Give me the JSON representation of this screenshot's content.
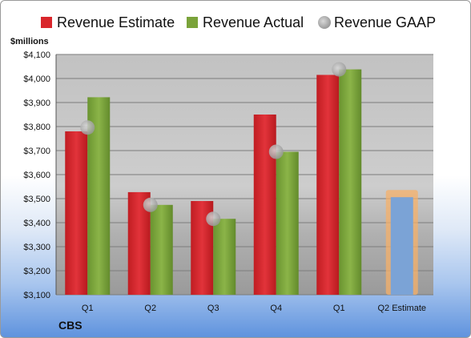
{
  "chart_data": {
    "type": "bar",
    "unit_label": "$millions",
    "company": "CBS",
    "categories": [
      "Q1",
      "Q2",
      "Q3",
      "Q4",
      "Q1",
      "Q2 Estimate"
    ],
    "series": [
      {
        "name": "Revenue Estimate",
        "color": "#d9262b",
        "values": [
          3780,
          3527,
          3490,
          3850,
          4015,
          null
        ]
      },
      {
        "name": "Revenue Actual",
        "color": "#7aa33a",
        "values": [
          3922,
          3474,
          3416,
          3695,
          4038,
          null
        ]
      },
      {
        "name": "Revenue GAAP",
        "color": "#b8b8b8",
        "values": [
          3796,
          3474,
          3416,
          3695,
          4038,
          null
        ]
      }
    ],
    "future_estimate": {
      "category": "Q2 Estimate",
      "value": 3506,
      "color": "#7ba3d6",
      "outline_color": "#f5b06a"
    },
    "ylim": [
      3100,
      4100
    ],
    "y_ticks": [
      "$3,100",
      "$3,200",
      "$3,300",
      "$3,400",
      "$3,500",
      "$3,600",
      "$3,700",
      "$3,800",
      "$3,900",
      "$4,000",
      "$4,100"
    ],
    "y_tick_values": [
      3100,
      3200,
      3300,
      3400,
      3500,
      3600,
      3700,
      3800,
      3900,
      4000,
      4100
    ],
    "grid": true,
    "legend_position": "top"
  }
}
